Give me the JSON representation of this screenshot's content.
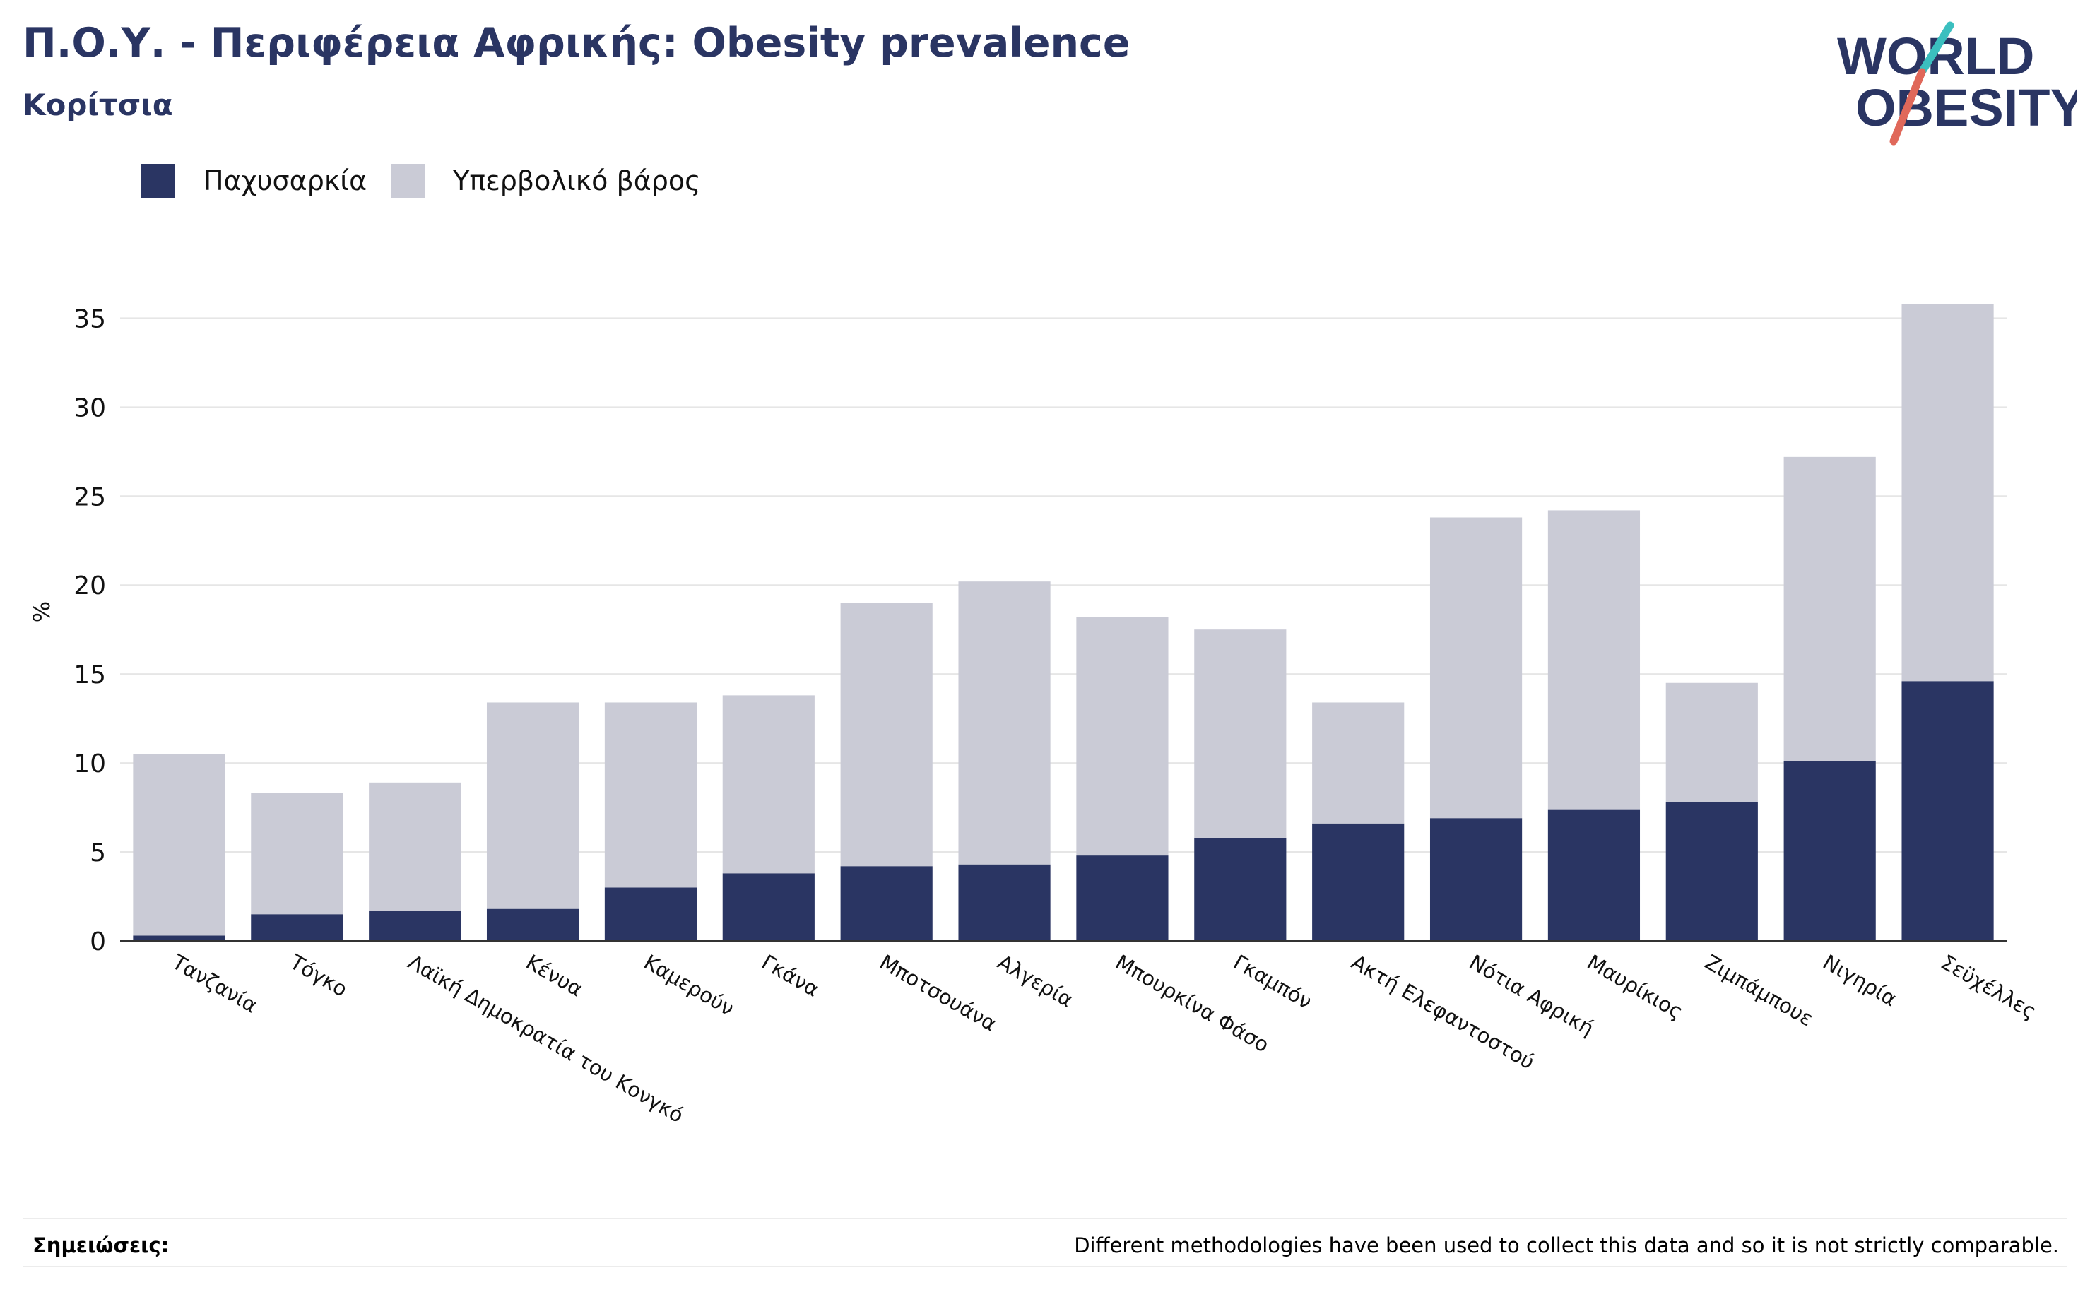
{
  "header": {
    "title": "Π.Ο.Υ. - Περιφέρεια Αφρικής: Obesity prevalence",
    "subtitle": "Κορίτσια"
  },
  "logo": {
    "line1": "WORLD",
    "line2": "OBESITY"
  },
  "notes": {
    "label": "Σημειώσεις:",
    "text": "Different methodologies have been used to collect this data and so it is not strictly comparable."
  },
  "colors": {
    "obesity": "#2a3563",
    "overweight": "#cacbd6",
    "logo_teal": "#3bbfbf",
    "logo_coral": "#e0685a"
  },
  "chart_data": {
    "type": "bar",
    "stacked": true,
    "ylabel": "%",
    "xlabel": "",
    "ylim": [
      0,
      37
    ],
    "yticks": [
      0,
      5,
      10,
      15,
      20,
      25,
      30,
      35
    ],
    "grid": true,
    "legend_position": "top-left",
    "categories": [
      "Τανζανία",
      "Τόγκο",
      "Λαϊκή Δημοκρατία του Κονγκό",
      "Κένυα",
      "Καμερούν",
      "Γκάνα",
      "Μποτσουάνα",
      "Αλγερία",
      "Μπουρκίνα Φάσο",
      "Γκαμπόν",
      "Ακτή Ελεφαντοστού",
      "Νότια Αφρική",
      "Μαυρίκιος",
      "Ζιμπάμπουε",
      "Νιγηρία",
      "Σεϋχέλλες"
    ],
    "series": [
      {
        "name": "Παχυσαρκία",
        "values": [
          0.3,
          1.5,
          1.7,
          1.8,
          3.0,
          3.8,
          4.2,
          4.3,
          4.8,
          5.8,
          6.6,
          6.9,
          7.4,
          7.8,
          10.1,
          14.6
        ]
      },
      {
        "name": "Υπερβολικό βάρος",
        "values": [
          10.2,
          6.8,
          7.2,
          11.6,
          10.4,
          10.0,
          14.8,
          15.9,
          13.4,
          11.7,
          6.8,
          16.9,
          16.8,
          6.7,
          17.1,
          21.2
        ]
      }
    ]
  }
}
